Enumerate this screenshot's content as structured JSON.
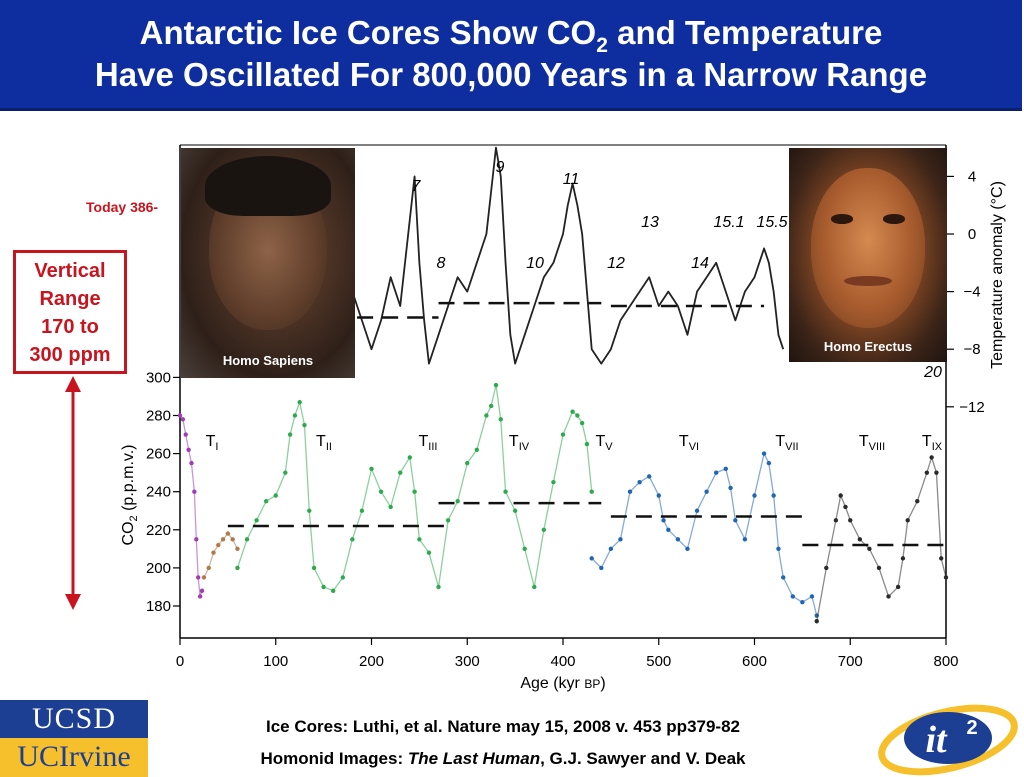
{
  "header": {
    "line1_pre": "Antarctic Ice Cores Show CO",
    "line1_sub": "2",
    "line1_post": " and Temperature",
    "line2": "Have Oscillated For 800,000 Years in a Narrow Range"
  },
  "annotations": {
    "today": "Today 386-",
    "vertical_range": [
      "Vertical",
      "Range",
      "170 to",
      "300 ppm"
    ]
  },
  "photos": {
    "sapiens_caption": "Homo Sapiens",
    "erectus_caption": "Homo Erectus"
  },
  "credits": {
    "line1": "Ice Cores: Luthi, et al. Nature may 15, 2008 v. 453 pp379-82",
    "line2_pre": "Homonid Images: ",
    "line2_italic": "The Last Human",
    "line2_post": ", G.J. Sawyer and V. Deak"
  },
  "logos": {
    "ucsd": "UCSD",
    "uci": "UCIrvine",
    "it2_main": "it",
    "it2_sup": "2"
  },
  "colors": {
    "header_bg": "#0e2d9e",
    "accent_red": "#c8141e",
    "ucsd_blue": "#1c3f94",
    "uci_gold": "#f6c02c"
  },
  "chart_data": {
    "type": "line",
    "xlabel": "Age (kyr BP)",
    "xticks": [
      0,
      100,
      200,
      300,
      400,
      500,
      600,
      700,
      800
    ],
    "xlim": [
      0,
      800
    ],
    "co2": {
      "ylabel": "CO2 (p.p.m.v.)",
      "ylim": [
        170,
        300
      ],
      "yticks": [
        180,
        200,
        220,
        240,
        260,
        280,
        300
      ],
      "series": [
        {
          "color": "#a03cb4",
          "points": [
            [
              0,
              280
            ],
            [
              3,
              278
            ],
            [
              6,
              270
            ],
            [
              9,
              262
            ],
            [
              12,
              255
            ],
            [
              15,
              240
            ],
            [
              17,
              215
            ],
            [
              19,
              195
            ],
            [
              21,
              185
            ],
            [
              23,
              188
            ]
          ]
        },
        {
          "color": "#b07a4a",
          "points": [
            [
              25,
              195
            ],
            [
              30,
              200
            ],
            [
              35,
              208
            ],
            [
              40,
              212
            ],
            [
              45,
              215
            ],
            [
              50,
              218
            ],
            [
              55,
              215
            ],
            [
              60,
              210
            ]
          ]
        },
        {
          "color": "#2eaa4e",
          "points": [
            [
              60,
              200
            ],
            [
              70,
              215
            ],
            [
              80,
              225
            ],
            [
              90,
              235
            ],
            [
              100,
              238
            ],
            [
              110,
              250
            ],
            [
              115,
              270
            ],
            [
              120,
              280
            ],
            [
              125,
              287
            ],
            [
              130,
              275
            ],
            [
              135,
              230
            ],
            [
              140,
              200
            ],
            [
              150,
              190
            ],
            [
              160,
              188
            ],
            [
              170,
              195
            ],
            [
              180,
              215
            ],
            [
              190,
              230
            ],
            [
              200,
              252
            ],
            [
              210,
              240
            ],
            [
              220,
              232
            ],
            [
              230,
              250
            ],
            [
              240,
              258
            ],
            [
              245,
              240
            ],
            [
              250,
              215
            ],
            [
              260,
              208
            ],
            [
              270,
              190
            ],
            [
              280,
              225
            ],
            [
              290,
              235
            ],
            [
              300,
              255
            ],
            [
              310,
              262
            ],
            [
              320,
              280
            ],
            [
              325,
              285
            ],
            [
              330,
              296
            ],
            [
              335,
              278
            ],
            [
              340,
              240
            ],
            [
              350,
              230
            ],
            [
              360,
              210
            ],
            [
              370,
              190
            ],
            [
              380,
              220
            ],
            [
              390,
              245
            ],
            [
              400,
              270
            ],
            [
              410,
              282
            ],
            [
              415,
              280
            ],
            [
              420,
              276
            ],
            [
              425,
              265
            ],
            [
              430,
              240
            ]
          ]
        },
        {
          "color": "#1f66b4",
          "points": [
            [
              430,
              205
            ],
            [
              440,
              200
            ],
            [
              450,
              210
            ],
            [
              460,
              215
            ],
            [
              470,
              240
            ],
            [
              480,
              245
            ],
            [
              490,
              248
            ],
            [
              500,
              238
            ],
            [
              505,
              225
            ],
            [
              510,
              220
            ],
            [
              520,
              215
            ],
            [
              530,
              210
            ],
            [
              540,
              230
            ],
            [
              550,
              240
            ],
            [
              560,
              250
            ],
            [
              570,
              252
            ],
            [
              575,
              242
            ],
            [
              580,
              225
            ],
            [
              590,
              215
            ],
            [
              600,
              238
            ],
            [
              610,
              260
            ],
            [
              615,
              255
            ],
            [
              620,
              238
            ],
            [
              625,
              210
            ],
            [
              630,
              195
            ],
            [
              640,
              185
            ],
            [
              650,
              182
            ],
            [
              660,
              185
            ],
            [
              665,
              175
            ]
          ]
        },
        {
          "color": "#2a2a2a",
          "points": [
            [
              665,
              172
            ],
            [
              675,
              200
            ],
            [
              685,
              225
            ],
            [
              690,
              238
            ],
            [
              695,
              232
            ],
            [
              700,
              225
            ],
            [
              710,
              215
            ],
            [
              720,
              210
            ],
            [
              730,
              200
            ],
            [
              740,
              185
            ],
            [
              750,
              190
            ],
            [
              755,
              205
            ],
            [
              760,
              225
            ],
            [
              770,
              235
            ],
            [
              780,
              250
            ],
            [
              785,
              258
            ],
            [
              790,
              250
            ],
            [
              795,
              205
            ],
            [
              800,
              195
            ]
          ]
        }
      ],
      "means": [
        {
          "x": [
            50,
            280
          ],
          "y": 222
        },
        {
          "x": [
            270,
            440
          ],
          "y": 234
        },
        {
          "x": [
            450,
            655
          ],
          "y": 227
        },
        {
          "x": [
            650,
            800
          ],
          "y": 212
        }
      ],
      "labels": [
        "TI",
        "TII",
        "TIII",
        "TIV",
        "TV",
        "TVI",
        "TVII",
        "TVIII",
        "TIX"
      ]
    },
    "temperature": {
      "ylabel": "Temperature anomaly (°C)",
      "yticks": [
        4,
        0,
        -4,
        -8,
        -12
      ],
      "ylim": [
        -12,
        5
      ],
      "stages": [
        "7",
        "8",
        "9",
        "10",
        "11",
        "12",
        "13",
        "14",
        "15.1",
        "15.5",
        "20"
      ],
      "points": [
        [
          180,
          -4
        ],
        [
          190,
          -6
        ],
        [
          200,
          -8
        ],
        [
          210,
          -6
        ],
        [
          220,
          -3
        ],
        [
          230,
          -5
        ],
        [
          235,
          -2
        ],
        [
          240,
          1
        ],
        [
          245,
          4
        ],
        [
          250,
          -2
        ],
        [
          255,
          -6
        ],
        [
          260,
          -9
        ],
        [
          270,
          -7
        ],
        [
          280,
          -5
        ],
        [
          290,
          -3
        ],
        [
          300,
          -4
        ],
        [
          310,
          -2
        ],
        [
          320,
          0
        ],
        [
          325,
          3
        ],
        [
          330,
          6
        ],
        [
          335,
          4
        ],
        [
          340,
          -2
        ],
        [
          345,
          -7
        ],
        [
          350,
          -9
        ],
        [
          360,
          -7
        ],
        [
          370,
          -5
        ],
        [
          380,
          -3
        ],
        [
          390,
          -2
        ],
        [
          400,
          0
        ],
        [
          405,
          2
        ],
        [
          410,
          3.5
        ],
        [
          415,
          2
        ],
        [
          420,
          0
        ],
        [
          425,
          -4
        ],
        [
          430,
          -8
        ],
        [
          440,
          -9
        ],
        [
          450,
          -8
        ],
        [
          460,
          -6
        ],
        [
          470,
          -5
        ],
        [
          480,
          -4
        ],
        [
          490,
          -3
        ],
        [
          500,
          -5
        ],
        [
          510,
          -4
        ],
        [
          520,
          -5
        ],
        [
          530,
          -7
        ],
        [
          540,
          -4
        ],
        [
          550,
          -3
        ],
        [
          560,
          -2
        ],
        [
          570,
          -4
        ],
        [
          580,
          -6
        ],
        [
          590,
          -4
        ],
        [
          600,
          -3
        ],
        [
          610,
          -1
        ],
        [
          615,
          -2
        ],
        [
          620,
          -4
        ],
        [
          625,
          -7
        ],
        [
          630,
          -8
        ]
      ],
      "means": [
        {
          "x": [
            185,
            270
          ],
          "y": -5.8
        },
        {
          "x": [
            270,
            440
          ],
          "y": -4.8
        },
        {
          "x": [
            450,
            610
          ],
          "y": -5.0
        }
      ]
    }
  }
}
